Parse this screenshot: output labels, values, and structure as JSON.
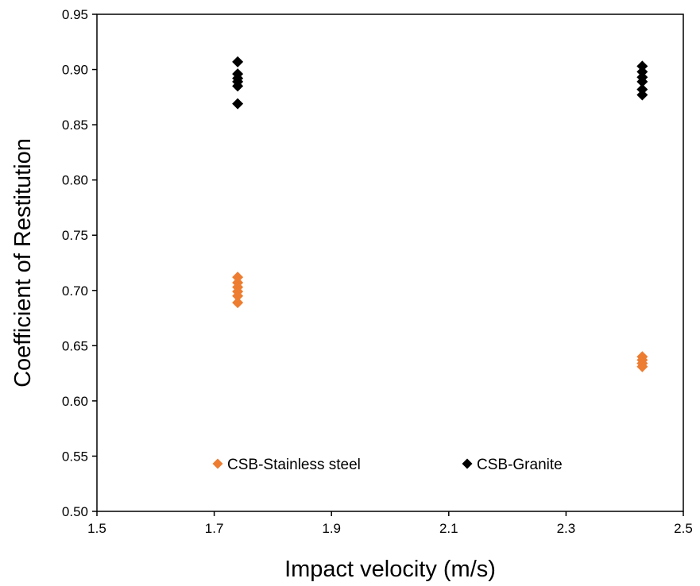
{
  "chart_data": {
    "type": "scatter",
    "title": "",
    "xlabel": "Impact velocity (m/s)",
    "ylabel": "Coefficient of Restitution",
    "xlim": [
      1.5,
      2.5
    ],
    "ylim": [
      0.5,
      0.95
    ],
    "x_ticks": [
      "1.5",
      "1.7",
      "1.9",
      "2.1",
      "2.3",
      "2.5"
    ],
    "y_ticks": [
      "0.50",
      "0.55",
      "0.60",
      "0.65",
      "0.70",
      "0.75",
      "0.80",
      "0.85",
      "0.90",
      "0.95"
    ],
    "grid": false,
    "legend_position": "bottom-inside",
    "marker": "diamond",
    "series": [
      {
        "name": "CSB-Stainless steel",
        "color": "#ED7D31",
        "points": [
          [
            1.74,
            0.712
          ],
          [
            1.74,
            0.707
          ],
          [
            1.74,
            0.703
          ],
          [
            1.74,
            0.699
          ],
          [
            1.74,
            0.695
          ],
          [
            1.74,
            0.689
          ],
          [
            2.43,
            0.64
          ],
          [
            2.43,
            0.637
          ],
          [
            2.43,
            0.634
          ],
          [
            2.43,
            0.631
          ]
        ]
      },
      {
        "name": "CSB-Granite",
        "color": "#000000",
        "points": [
          [
            1.74,
            0.907
          ],
          [
            1.74,
            0.896
          ],
          [
            1.74,
            0.892
          ],
          [
            1.74,
            0.889
          ],
          [
            1.74,
            0.885
          ],
          [
            1.74,
            0.869
          ],
          [
            2.43,
            0.903
          ],
          [
            2.43,
            0.898
          ],
          [
            2.43,
            0.893
          ],
          [
            2.43,
            0.889
          ],
          [
            2.43,
            0.882
          ],
          [
            2.43,
            0.877
          ]
        ]
      }
    ]
  }
}
